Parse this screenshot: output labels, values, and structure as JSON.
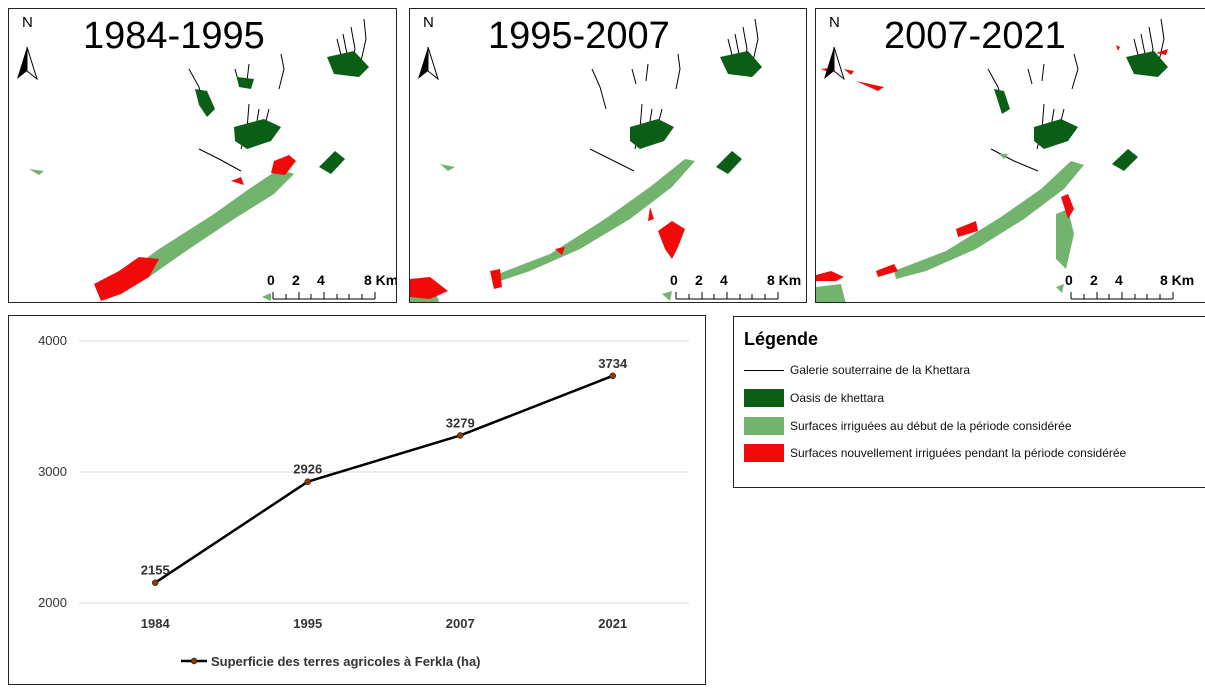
{
  "maps": [
    {
      "title": "1984-1995",
      "north": "N",
      "scale": {
        "ticks": [
          "0",
          "2",
          "4",
          "8 Km"
        ]
      }
    },
    {
      "title": "1995-2007",
      "north": "N",
      "scale": {
        "ticks": [
          "0",
          "2",
          "4",
          "8 Km"
        ]
      }
    },
    {
      "title": "2007-2021",
      "north": "N",
      "scale": {
        "ticks": [
          "0",
          "2",
          "4",
          "8 Km"
        ]
      }
    }
  ],
  "legend": {
    "title": "Légende",
    "items": [
      {
        "label": "Galerie souterraine de la Khettara",
        "symbol": "line",
        "color": "#000000"
      },
      {
        "label": "Oasis de khettara",
        "symbol": "fill",
        "color": "#0b5e16"
      },
      {
        "label": "Surfaces irriguées au début de la période considérée",
        "symbol": "fill",
        "color": "#72b36e"
      },
      {
        "label": "Surfaces nouvellement irriguées pendant la période considérée",
        "symbol": "fill",
        "color": "#f20a0a"
      }
    ]
  },
  "chart_data": {
    "type": "line",
    "categories": [
      "1984",
      "1995",
      "2007",
      "2021"
    ],
    "series": [
      {
        "name": "Superficie des terres agricoles à Ferkla (ha)",
        "values": [
          2155,
          2926,
          3279,
          3734
        ]
      }
    ],
    "ylim": [
      2000,
      4000
    ],
    "yticks": [
      2000,
      3000,
      4000
    ],
    "grid": true,
    "legend_position": "bottom",
    "line_color": "#000000",
    "marker_color": "#8b3a0a"
  }
}
